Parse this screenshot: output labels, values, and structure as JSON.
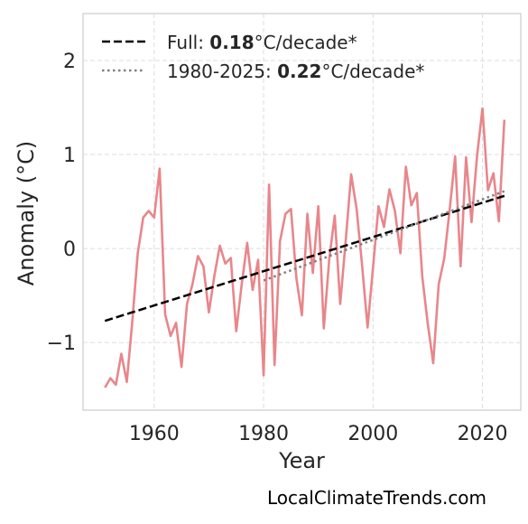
{
  "chart_data": {
    "type": "line",
    "xlabel": "Year",
    "ylabel": "Anomaly (°C)",
    "xlim": [
      1947,
      2027
    ],
    "ylim": [
      -1.72,
      2.5
    ],
    "xticks": [
      1960,
      1980,
      2000,
      2020
    ],
    "yticks": [
      -1,
      0,
      1,
      2
    ],
    "ytick_labels": [
      "−1",
      "0",
      "1",
      "2"
    ],
    "grid": true,
    "legend_position": "top-left",
    "series": [
      {
        "style": "solid",
        "color": "#e8868b",
        "x": [
          1951,
          1952,
          1953,
          1954,
          1955,
          1956,
          1957,
          1958,
          1959,
          1960,
          1961,
          1962,
          1963,
          1964,
          1965,
          1966,
          1967,
          1968,
          1969,
          1970,
          1971,
          1972,
          1973,
          1974,
          1975,
          1976,
          1977,
          1978,
          1979,
          1980,
          1981,
          1982,
          1983,
          1984,
          1985,
          1986,
          1987,
          1988,
          1989,
          1990,
          1991,
          1992,
          1993,
          1994,
          1995,
          1996,
          1997,
          1998,
          1999,
          2000,
          2001,
          2002,
          2003,
          2004,
          2005,
          2006,
          2007,
          2008,
          2009,
          2010,
          2011,
          2012,
          2013,
          2014,
          2015,
          2016,
          2017,
          2018,
          2019,
          2020,
          2021,
          2022,
          2023,
          2024
        ],
        "y": [
          -1.48,
          -1.38,
          -1.45,
          -1.12,
          -1.42,
          -0.78,
          -0.05,
          0.33,
          0.4,
          0.33,
          0.85,
          -0.7,
          -0.93,
          -0.79,
          -1.26,
          -0.59,
          -0.38,
          -0.08,
          -0.19,
          -0.68,
          -0.29,
          0.03,
          -0.16,
          -0.1,
          -0.88,
          -0.38,
          0.06,
          -0.44,
          -0.12,
          -1.35,
          0.68,
          -1.24,
          0.08,
          0.37,
          0.42,
          -0.32,
          -0.71,
          0.37,
          -0.26,
          0.45,
          -0.85,
          -0.11,
          0.35,
          -0.59,
          0.08,
          0.79,
          0.42,
          -0.18,
          -0.84,
          -0.2,
          0.45,
          0.23,
          0.63,
          0.4,
          -0.05,
          0.87,
          0.46,
          0.59,
          -0.3,
          -0.8,
          -1.22,
          -0.38,
          -0.11,
          0.41,
          0.98,
          -0.19,
          0.97,
          0.28,
          0.98,
          1.49,
          0.62,
          0.8,
          0.29,
          1.37
        ]
      },
      {
        "name": "Full: 0.18°C/decade*",
        "style": "dashed",
        "color": "#000000",
        "x": [
          1951,
          2024
        ],
        "y": [
          -0.77,
          0.56
        ]
      },
      {
        "name": "1980-2025: 0.22°C/decade*",
        "style": "dotted",
        "color": "#808080",
        "x": [
          1980,
          2024
        ],
        "y": [
          -0.34,
          0.61
        ]
      }
    ],
    "legend": [
      {
        "prefix": "Full: ",
        "bold": "0.18",
        "suffix": "°C/decade*"
      },
      {
        "prefix": "1980-2025: ",
        "bold": "0.22",
        "suffix": "°C/decade*"
      }
    ]
  },
  "credit": "LocalClimateTrends.com"
}
